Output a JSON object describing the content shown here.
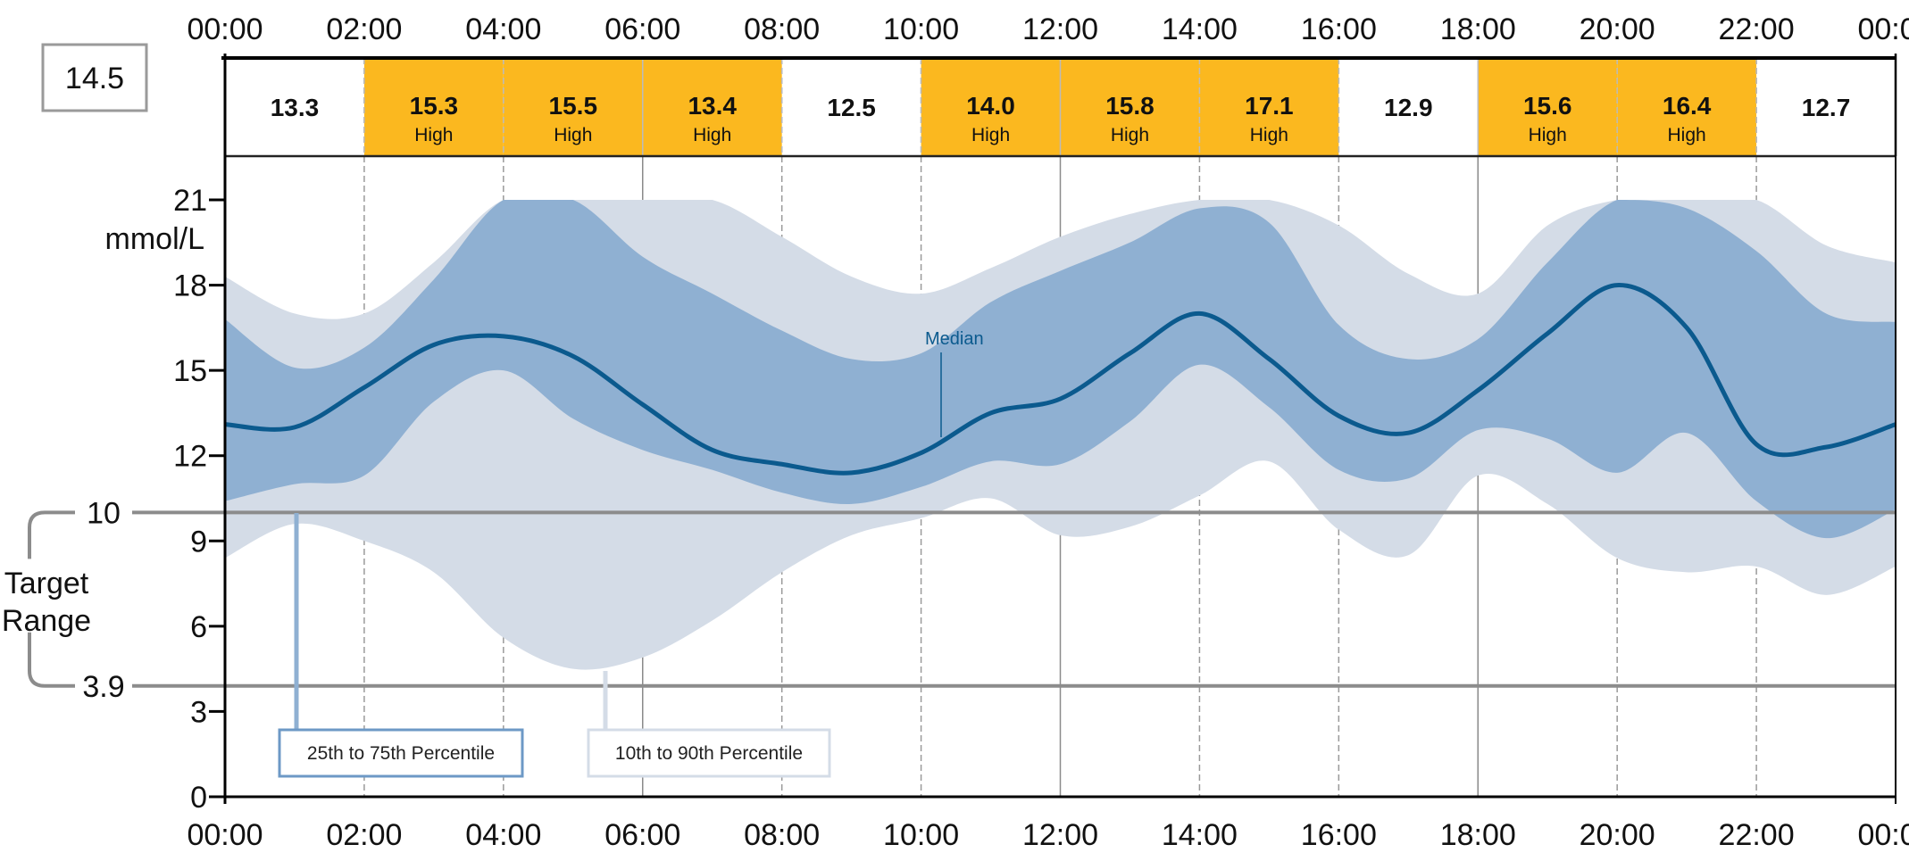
{
  "chart_data": {
    "type": "area",
    "title": "",
    "ylabel": "mmol/L",
    "xlabel": "",
    "ylim": [
      0,
      21
    ],
    "xlim_hours": [
      0,
      24
    ],
    "y_ticks": [
      0,
      3,
      6,
      9,
      12,
      15,
      18,
      21
    ],
    "x_tick_labels": [
      "00:00",
      "02:00",
      "04:00",
      "06:00",
      "08:00",
      "10:00",
      "12:00",
      "14:00",
      "16:00",
      "18:00",
      "20:00",
      "22:00",
      "00:00"
    ],
    "target_range": {
      "label_line1": "Target",
      "label_line2": "Range",
      "low": 3.9,
      "high": 10,
      "low_label": "3.9",
      "high_label": "10"
    },
    "overall_median": "14.5",
    "period_medians": [
      {
        "value": "13.3",
        "flag": ""
      },
      {
        "value": "15.3",
        "flag": "High"
      },
      {
        "value": "15.5",
        "flag": "High"
      },
      {
        "value": "13.4",
        "flag": "High"
      },
      {
        "value": "12.5",
        "flag": ""
      },
      {
        "value": "14.0",
        "flag": "High"
      },
      {
        "value": "15.8",
        "flag": "High"
      },
      {
        "value": "17.1",
        "flag": "High"
      },
      {
        "value": "12.9",
        "flag": ""
      },
      {
        "value": "15.6",
        "flag": "High"
      },
      {
        "value": "16.4",
        "flag": "High"
      },
      {
        "value": "12.7",
        "flag": ""
      }
    ],
    "hours": [
      0,
      1,
      2,
      3,
      4,
      5,
      6,
      7,
      8,
      9,
      10,
      11,
      12,
      13,
      14,
      15,
      16,
      17,
      18,
      19,
      20,
      21,
      22,
      23,
      24
    ],
    "series": [
      {
        "name": "p90",
        "values": [
          18.3,
          17.0,
          17.0,
          18.8,
          21,
          21,
          21,
          21,
          19.7,
          18.3,
          17.7,
          18.6,
          19.7,
          20.5,
          21,
          21,
          20.1,
          18.4,
          17.7,
          20.1,
          21,
          21,
          21,
          19.4,
          18.8
        ]
      },
      {
        "name": "p75",
        "values": [
          16.8,
          15.1,
          15.8,
          18.2,
          21,
          21,
          19.0,
          17.7,
          16.4,
          15.4,
          15.6,
          17.4,
          18.5,
          19.5,
          20.7,
          20.2,
          16.6,
          15.4,
          16.1,
          18.8,
          21,
          20.7,
          19.2,
          17.0,
          16.7
        ]
      },
      {
        "name": "Median",
        "values": [
          13.1,
          13.0,
          14.4,
          15.9,
          16.2,
          15.5,
          13.8,
          12.2,
          11.7,
          11.4,
          12.1,
          13.5,
          14.0,
          15.6,
          17.0,
          15.4,
          13.4,
          12.8,
          14.3,
          16.3,
          18.0,
          16.5,
          12.4,
          12.3,
          13.1
        ]
      },
      {
        "name": "p25",
        "values": [
          10.4,
          11.0,
          11.3,
          13.9,
          15.0,
          13.3,
          12.2,
          11.5,
          10.7,
          10.3,
          10.9,
          11.8,
          11.7,
          13.2,
          15.2,
          13.7,
          11.5,
          11.2,
          12.9,
          12.6,
          11.4,
          12.8,
          10.4,
          9.1,
          10.1
        ]
      },
      {
        "name": "p10",
        "values": [
          8.4,
          9.6,
          9.0,
          7.9,
          5.6,
          4.5,
          4.9,
          6.2,
          7.9,
          9.2,
          9.8,
          10.5,
          9.2,
          9.5,
          10.6,
          11.8,
          9.4,
          8.5,
          11.3,
          10.3,
          8.4,
          7.9,
          8.1,
          7.1,
          8.1
        ]
      }
    ],
    "legend": {
      "median": "Median",
      "iqr": "25th to 75th Percentile",
      "outer": "10th to 90th Percentile"
    },
    "colors": {
      "iqr": "#8fb0d2",
      "outer": "#d4dce7",
      "median": "#0b5a8e",
      "high": "#fbb81f",
      "target": "#8c8c8c"
    }
  }
}
